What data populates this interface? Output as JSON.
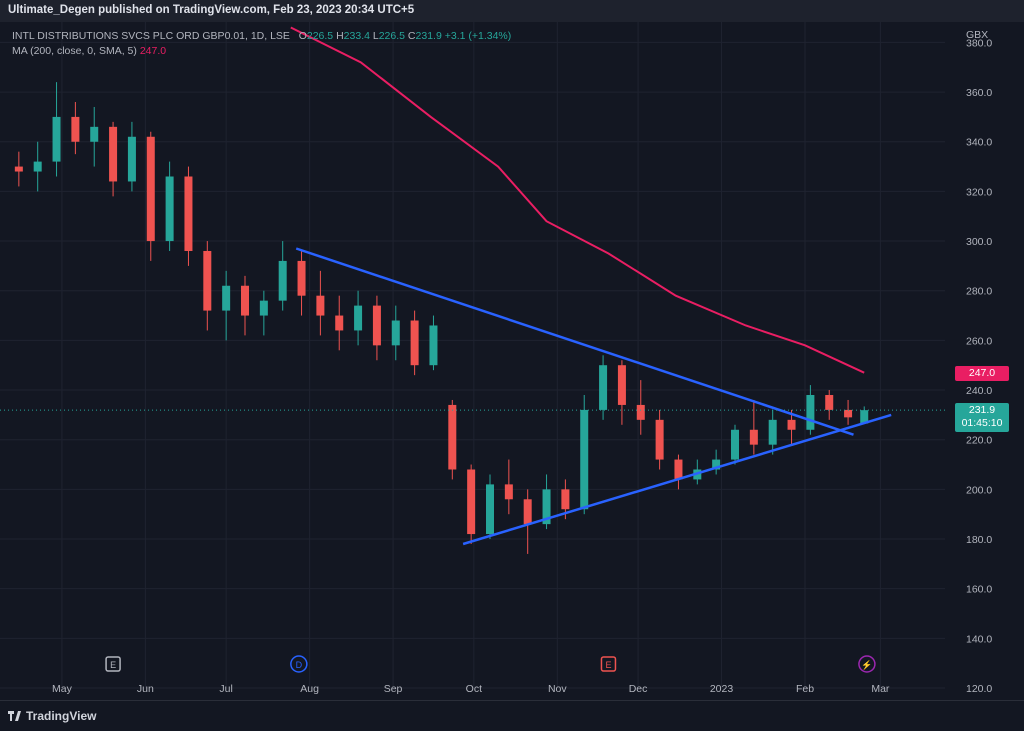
{
  "header": {
    "published_text": "Ultimate_Degen published on TradingView.com, Feb 23, 2023 20:34 UTC+5"
  },
  "legend": {
    "symbol": "INTL DISTRIBUTIONS SVCS PLC ORD GBP0.01, 1D, LSE",
    "o_label": "O",
    "o_value": "226.5",
    "h_label": "H",
    "h_value": "233.4",
    "l_label": "L",
    "l_value": "226.5",
    "c_label": "C",
    "c_value": "231.9",
    "change": "+3.1 (+1.34%)",
    "ma_label": "MA (200, close, 0, SMA, 5)",
    "ma_value": "247.0"
  },
  "currency": "GBX",
  "price_labels": {
    "ma": "247.0",
    "last": "231.9",
    "countdown": "01:45:10"
  },
  "event_markers": [
    "E",
    "D",
    "E",
    "⚡"
  ],
  "colors": {
    "background": "#131722",
    "up": "#26a69a",
    "down": "#ef5350",
    "ma": "#e91e63",
    "trendline": "#2962ff",
    "grid": "#1f2330"
  },
  "footer": {
    "brand": "TradingView"
  },
  "chart_data": {
    "type": "candlestick",
    "y_axis": {
      "ticks": [
        120.0,
        140.0,
        160.0,
        180.0,
        200.0,
        220.0,
        240.0,
        260.0,
        280.0,
        300.0,
        320.0,
        340.0,
        360.0,
        380.0
      ],
      "ylim": [
        120,
        385
      ],
      "position": "right"
    },
    "x_axis": {
      "ticks": [
        "May",
        "Jun",
        "Jul",
        "Aug",
        "Sep",
        "Oct",
        "Nov",
        "Dec",
        "2023",
        "Feb",
        "Mar"
      ]
    },
    "grid": true,
    "series": [
      {
        "name": "MA (200, close, 0, SMA, 5)",
        "type": "line",
        "points": [
          {
            "x": "2022-07-25",
            "y": 386
          },
          {
            "x": "2022-08-20",
            "y": 372
          },
          {
            "x": "2022-09-15",
            "y": 350
          },
          {
            "x": "2022-10-10",
            "y": 330
          },
          {
            "x": "2022-10-28",
            "y": 308
          },
          {
            "x": "2022-11-20",
            "y": 295
          },
          {
            "x": "2022-12-15",
            "y": 278
          },
          {
            "x": "2023-01-10",
            "y": 266
          },
          {
            "x": "2023-02-01",
            "y": 258
          },
          {
            "x": "2023-02-23",
            "y": 247.0
          }
        ]
      },
      {
        "name": "Trendline upper",
        "type": "line",
        "points": [
          {
            "x": "2022-07-27",
            "y": 297
          },
          {
            "x": "2023-02-19",
            "y": 222
          }
        ]
      },
      {
        "name": "Trendline lower",
        "type": "line",
        "points": [
          {
            "x": "2022-09-27",
            "y": 178
          },
          {
            "x": "2023-03-05",
            "y": 230
          }
        ]
      }
    ],
    "candles": [
      {
        "x": "2022-04-15",
        "o": 330,
        "h": 336,
        "l": 322,
        "c": 328
      },
      {
        "x": "2022-04-22",
        "o": 328,
        "h": 340,
        "l": 320,
        "c": 332
      },
      {
        "x": "2022-04-29",
        "o": 332,
        "h": 364,
        "l": 326,
        "c": 350
      },
      {
        "x": "2022-05-06",
        "o": 350,
        "h": 356,
        "l": 335,
        "c": 340
      },
      {
        "x": "2022-05-13",
        "o": 340,
        "h": 354,
        "l": 330,
        "c": 346
      },
      {
        "x": "2022-05-20",
        "o": 346,
        "h": 348,
        "l": 318,
        "c": 324
      },
      {
        "x": "2022-05-27",
        "o": 324,
        "h": 348,
        "l": 320,
        "c": 342
      },
      {
        "x": "2022-06-03",
        "o": 342,
        "h": 344,
        "l": 292,
        "c": 300
      },
      {
        "x": "2022-06-10",
        "o": 300,
        "h": 332,
        "l": 296,
        "c": 326
      },
      {
        "x": "2022-06-17",
        "o": 326,
        "h": 330,
        "l": 290,
        "c": 296
      },
      {
        "x": "2022-06-24",
        "o": 296,
        "h": 300,
        "l": 264,
        "c": 272
      },
      {
        "x": "2022-07-01",
        "o": 272,
        "h": 288,
        "l": 260,
        "c": 282
      },
      {
        "x": "2022-07-08",
        "o": 282,
        "h": 286,
        "l": 262,
        "c": 270
      },
      {
        "x": "2022-07-15",
        "o": 270,
        "h": 280,
        "l": 262,
        "c": 276
      },
      {
        "x": "2022-07-22",
        "o": 276,
        "h": 300,
        "l": 272,
        "c": 292
      },
      {
        "x": "2022-07-29",
        "o": 292,
        "h": 296,
        "l": 270,
        "c": 278
      },
      {
        "x": "2022-08-05",
        "o": 278,
        "h": 288,
        "l": 262,
        "c": 270
      },
      {
        "x": "2022-08-12",
        "o": 270,
        "h": 278,
        "l": 256,
        "c": 264
      },
      {
        "x": "2022-08-19",
        "o": 264,
        "h": 280,
        "l": 258,
        "c": 274
      },
      {
        "x": "2022-08-26",
        "o": 274,
        "h": 278,
        "l": 252,
        "c": 258
      },
      {
        "x": "2022-09-02",
        "o": 258,
        "h": 274,
        "l": 252,
        "c": 268
      },
      {
        "x": "2022-09-09",
        "o": 268,
        "h": 272,
        "l": 246,
        "c": 250
      },
      {
        "x": "2022-09-16",
        "o": 250,
        "h": 270,
        "l": 248,
        "c": 266
      },
      {
        "x": "2022-09-23",
        "o": 234,
        "h": 236,
        "l": 204,
        "c": 208
      },
      {
        "x": "2022-09-30",
        "o": 208,
        "h": 210,
        "l": 178,
        "c": 182
      },
      {
        "x": "2022-10-07",
        "o": 182,
        "h": 206,
        "l": 180,
        "c": 202
      },
      {
        "x": "2022-10-14",
        "o": 202,
        "h": 212,
        "l": 190,
        "c": 196
      },
      {
        "x": "2022-10-21",
        "o": 196,
        "h": 200,
        "l": 174,
        "c": 186
      },
      {
        "x": "2022-10-28",
        "o": 186,
        "h": 206,
        "l": 184,
        "c": 200
      },
      {
        "x": "2022-11-04",
        "o": 200,
        "h": 204,
        "l": 188,
        "c": 192
      },
      {
        "x": "2022-11-11",
        "o": 192,
        "h": 238,
        "l": 190,
        "c": 232
      },
      {
        "x": "2022-11-18",
        "o": 232,
        "h": 254,
        "l": 228,
        "c": 250
      },
      {
        "x": "2022-11-25",
        "o": 250,
        "h": 252,
        "l": 226,
        "c": 234
      },
      {
        "x": "2022-12-02",
        "o": 234,
        "h": 244,
        "l": 222,
        "c": 228
      },
      {
        "x": "2022-12-09",
        "o": 228,
        "h": 232,
        "l": 208,
        "c": 212
      },
      {
        "x": "2022-12-16",
        "o": 212,
        "h": 214,
        "l": 200,
        "c": 204
      },
      {
        "x": "2022-12-23",
        "o": 204,
        "h": 212,
        "l": 202,
        "c": 208
      },
      {
        "x": "2022-12-30",
        "o": 208,
        "h": 216,
        "l": 206,
        "c": 212
      },
      {
        "x": "2023-01-06",
        "o": 212,
        "h": 226,
        "l": 210,
        "c": 224
      },
      {
        "x": "2023-01-13",
        "o": 224,
        "h": 236,
        "l": 214,
        "c": 218
      },
      {
        "x": "2023-01-20",
        "o": 218,
        "h": 232,
        "l": 214,
        "c": 228
      },
      {
        "x": "2023-01-27",
        "o": 228,
        "h": 232,
        "l": 218,
        "c": 224
      },
      {
        "x": "2023-02-03",
        "o": 224,
        "h": 242,
        "l": 222,
        "c": 238
      },
      {
        "x": "2023-02-10",
        "o": 238,
        "h": 240,
        "l": 228,
        "c": 232
      },
      {
        "x": "2023-02-17",
        "o": 232,
        "h": 236,
        "l": 226,
        "c": 229
      },
      {
        "x": "2023-02-23",
        "o": 226.5,
        "h": 233.4,
        "l": 226.5,
        "c": 231.9
      }
    ]
  }
}
